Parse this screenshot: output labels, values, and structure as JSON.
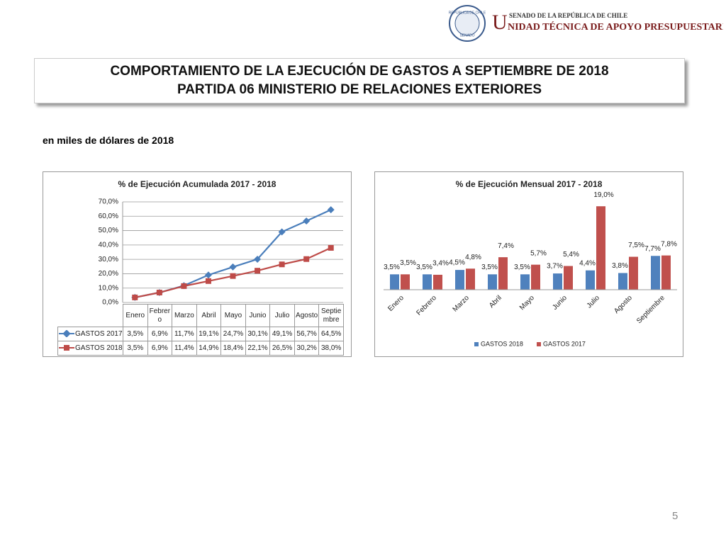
{
  "header": {
    "seal_top": "REPÚBLICA DE CHILE",
    "seal_bottom": "SENADO",
    "initial": "U",
    "line1": "SENADO DE LA REPÚBLICA DE CHILE",
    "line2": "NIDAD TÉCNICA DE APOYO PRESUPUESTARIO"
  },
  "title": [
    "COMPORTAMIENTO DE LA EJECUCIÓN DE GASTOS A SEPTIEMBRE DE 2018",
    "PARTIDA 06 MINISTERIO DE RELACIONES EXTERIORES"
  ],
  "subtitle": "en miles de dólares de 2018",
  "page_number": "5",
  "chart_data": [
    {
      "type": "line",
      "title": "% de Ejecución Acumulada 2017 - 2018",
      "categories": [
        "Enero",
        "Febrero",
        "Marzo",
        "Abril",
        "Mayo",
        "Junio",
        "Julio",
        "Agosto",
        "Septiembre"
      ],
      "series": [
        {
          "name": "GASTOS 2017",
          "color": "#4a7ebb",
          "marker": "diamond",
          "values": [
            3.5,
            6.9,
            11.7,
            19.1,
            24.7,
            30.1,
            49.1,
            56.7,
            64.5
          ],
          "value_labels": [
            "3,5%",
            "6,9%",
            "11,7%",
            "19,1%",
            "24,7%",
            "30,1%",
            "49,1%",
            "56,7%",
            "64,5%"
          ]
        },
        {
          "name": "GASTOS 2018",
          "color": "#be4b48",
          "marker": "square",
          "values": [
            3.5,
            6.9,
            11.4,
            14.9,
            18.4,
            22.1,
            26.5,
            30.2,
            38.0
          ],
          "value_labels": [
            "3,5%",
            "6,9%",
            "11,4%",
            "14,9%",
            "18,4%",
            "22,1%",
            "26,5%",
            "30,2%",
            "38,0%"
          ]
        }
      ],
      "ylim": [
        0,
        70
      ],
      "yticks": [
        {
          "value": 0,
          "label": "0,0%"
        },
        {
          "value": 10,
          "label": "10,0%"
        },
        {
          "value": 20,
          "label": "20,0%"
        },
        {
          "value": 30,
          "label": "30,0%"
        },
        {
          "value": 40,
          "label": "40,0%"
        },
        {
          "value": 50,
          "label": "50,0%"
        },
        {
          "value": 60,
          "label": "60,0%"
        },
        {
          "value": 70,
          "label": "70,0%"
        }
      ],
      "grid": true,
      "data_table": true
    },
    {
      "type": "bar",
      "title": "% de Ejecución Mensual 2017 - 2018",
      "categories": [
        "Enero",
        "Febrero",
        "Marzo",
        "Abril",
        "Mayo",
        "Junio",
        "Julio",
        "Agosto",
        "Septiembre"
      ],
      "series": [
        {
          "name": "GASTOS 2018",
          "color": "#4f81bd",
          "values": [
            3.5,
            3.5,
            4.5,
            3.5,
            3.5,
            3.7,
            4.4,
            3.8,
            7.7
          ],
          "value_labels": [
            "3,5%",
            "3,5%",
            "4,5%",
            "3,5%",
            "3,5%",
            "3,7%",
            "4,4%",
            "3,8%",
            "7,7%"
          ]
        },
        {
          "name": "GASTOS 2017",
          "color": "#c0504d",
          "values": [
            3.5,
            3.4,
            4.8,
            7.4,
            5.7,
            5.4,
            19.0,
            7.5,
            7.8
          ],
          "value_labels": [
            "3,5%",
            "3,4%",
            "4,8%",
            "7,4%",
            "5,7%",
            "5,4%",
            "19,0%",
            "7,5%",
            "7,8%"
          ]
        }
      ],
      "ylim": [
        0,
        20
      ],
      "legend": "bottom"
    }
  ]
}
